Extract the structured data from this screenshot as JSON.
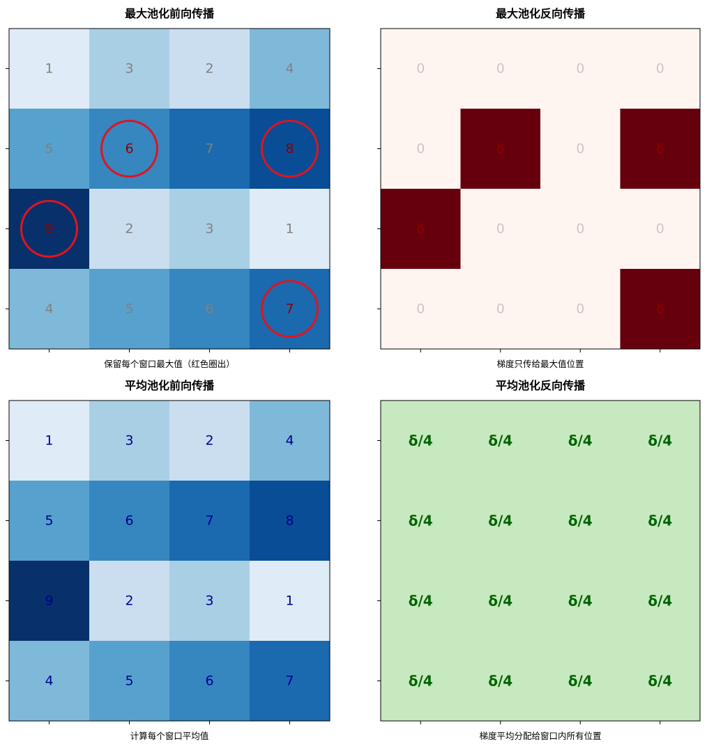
{
  "chart_data": [
    {
      "type": "heatmap",
      "title": "最大池化前向传播",
      "xlabel": "保留每个窗口最大值（红色圈出）",
      "colormap": "Blues",
      "text_color": "#808080",
      "highlight_color": "#8b0000",
      "circle_color": "#e0141e",
      "values": [
        [
          1,
          3,
          2,
          4
        ],
        [
          5,
          6,
          7,
          8
        ],
        [
          9,
          2,
          3,
          1
        ],
        [
          4,
          5,
          6,
          7
        ]
      ],
      "labels": [
        [
          "1",
          "3",
          "2",
          "4"
        ],
        [
          "5",
          "6",
          "7",
          "8"
        ],
        [
          "9",
          "2",
          "3",
          "1"
        ],
        [
          "4",
          "5",
          "6",
          "7"
        ]
      ],
      "circled": [
        [
          1,
          1
        ],
        [
          1,
          3
        ],
        [
          2,
          0
        ],
        [
          3,
          3
        ]
      ]
    },
    {
      "type": "heatmap",
      "title": "最大池化反向传播",
      "xlabel": "梯度只传给最大值位置",
      "colormap": "Reds",
      "text_color": "#c8c8c8",
      "highlight_color": "#8b0000",
      "values": [
        [
          0,
          0,
          0,
          0
        ],
        [
          0,
          1,
          0,
          1
        ],
        [
          1,
          0,
          0,
          0
        ],
        [
          0,
          0,
          0,
          1
        ]
      ],
      "labels": [
        [
          "0",
          "0",
          "0",
          "0"
        ],
        [
          "0",
          "δ",
          "0",
          "δ"
        ],
        [
          "δ",
          "0",
          "0",
          "0"
        ],
        [
          "0",
          "0",
          "0",
          "δ"
        ]
      ]
    },
    {
      "type": "heatmap",
      "title": "平均池化前向传播",
      "xlabel": "计算每个窗口平均值",
      "colormap": "Blues",
      "text_color": "#00008b",
      "values": [
        [
          1,
          3,
          2,
          4
        ],
        [
          5,
          6,
          7,
          8
        ],
        [
          9,
          2,
          3,
          1
        ],
        [
          4,
          5,
          6,
          7
        ]
      ],
      "labels": [
        [
          "1",
          "3",
          "2",
          "4"
        ],
        [
          "5",
          "6",
          "7",
          "8"
        ],
        [
          "9",
          "2",
          "3",
          "1"
        ],
        [
          "4",
          "5",
          "6",
          "7"
        ]
      ]
    },
    {
      "type": "heatmap",
      "title": "平均池化反向传播",
      "xlabel": "梯度平均分配给窗口内所有位置",
      "colormap": "Greens",
      "fill_color": "#c7e9c0",
      "text_color": "#006400",
      "values": [
        [
          1,
          1,
          1,
          1
        ],
        [
          1,
          1,
          1,
          1
        ],
        [
          1,
          1,
          1,
          1
        ],
        [
          1,
          1,
          1,
          1
        ]
      ],
      "labels": [
        [
          "δ/4",
          "δ/4",
          "δ/4",
          "δ/4"
        ],
        [
          "δ/4",
          "δ/4",
          "δ/4",
          "δ/4"
        ],
        [
          "δ/4",
          "δ/4",
          "δ/4",
          "δ/4"
        ],
        [
          "δ/4",
          "δ/4",
          "δ/4",
          "δ/4"
        ]
      ]
    }
  ]
}
